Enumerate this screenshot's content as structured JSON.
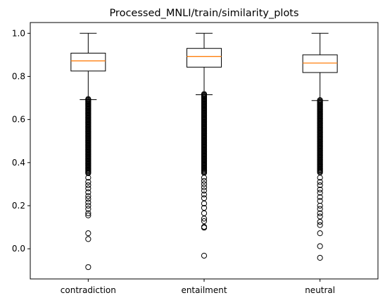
{
  "chart_data": {
    "type": "box",
    "title": "Processed_MNLI/train/similarity_plots",
    "xlabel": "",
    "ylabel": "",
    "ylim": [
      -0.14,
      1.05
    ],
    "yticks": [
      0.0,
      0.2,
      0.4,
      0.6,
      0.8,
      1.0
    ],
    "ytick_labels": [
      "0.0",
      "0.2",
      "0.4",
      "0.6",
      "0.8",
      "1.0"
    ],
    "grid": false,
    "categories": [
      "contradiction",
      "entailment",
      "neutral"
    ],
    "boxes": [
      {
        "category": "contradiction",
        "whisker_low": 0.692,
        "q1": 0.825,
        "median": 0.872,
        "q3": 0.908,
        "whisker_high": 1.0,
        "outlier_band": [
          0.35,
          0.695
        ],
        "outliers": [
          0.33,
          0.31,
          0.295,
          0.28,
          0.262,
          0.245,
          0.232,
          0.215,
          0.2,
          0.185,
          0.165,
          0.155,
          0.072,
          0.045,
          -0.085
        ]
      },
      {
        "category": "entailment",
        "whisker_low": 0.715,
        "q1": 0.843,
        "median": 0.892,
        "q3": 0.93,
        "whisker_high": 1.0,
        "outlier_band": [
          0.35,
          0.718
        ],
        "outliers": [
          0.33,
          0.315,
          0.3,
          0.285,
          0.27,
          0.252,
          0.235,
          0.21,
          0.19,
          0.165,
          0.14,
          0.128,
          0.102,
          0.098,
          -0.032
        ]
      },
      {
        "category": "neutral",
        "whisker_low": 0.688,
        "q1": 0.818,
        "median": 0.862,
        "q3": 0.9,
        "whisker_high": 1.0,
        "outlier_band": [
          0.35,
          0.69
        ],
        "outliers": [
          0.33,
          0.31,
          0.295,
          0.275,
          0.26,
          0.24,
          0.222,
          0.2,
          0.185,
          0.165,
          0.15,
          0.125,
          0.11,
          0.072,
          0.012,
          -0.042
        ]
      }
    ],
    "colors": {
      "box": "#000000",
      "median": "#ff7f0e",
      "outlier_edge": "#000000",
      "background": "#ffffff"
    }
  }
}
